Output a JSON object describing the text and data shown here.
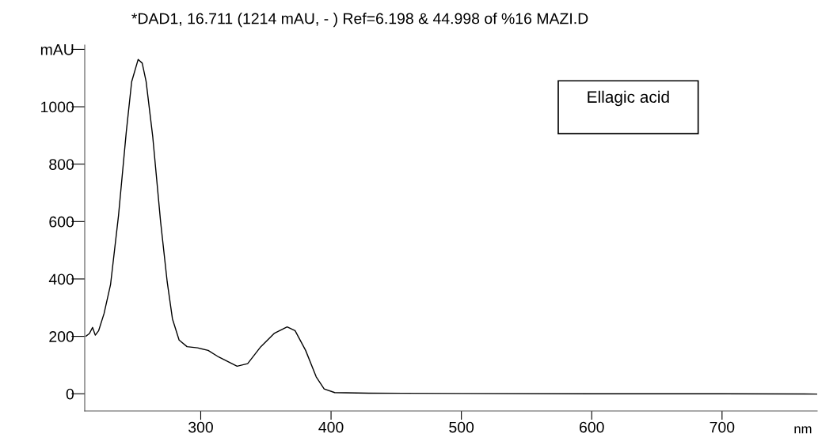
{
  "chart_data": {
    "type": "line",
    "title": "*DAD1, 16.711 (1214 mAU, - ) Ref=6.198 & 44.998 of %16 MAZI.D",
    "xlabel": "nm",
    "annotations": [
      "Ellagic acid"
    ],
    "x": [
      212,
      214.6,
      217,
      219.1,
      221.7,
      225.8,
      230.8,
      236.9,
      242.9,
      247,
      252,
      255.1,
      258.1,
      263.2,
      269.2,
      274.3,
      278.3,
      283.4,
      289.5,
      297.6,
      305.7,
      313.8,
      327.9,
      336,
      346.1,
      356.3,
      366.3,
      372.4,
      380.5,
      388.6,
      394.7,
      402.8,
      429.1,
      500,
      600,
      700,
      773
    ],
    "series": [
      {
        "color": "#000000",
        "values": [
          201,
          210,
          231,
          204,
          220,
          279,
          380,
          620,
          913,
          1087,
          1165,
          1152,
          1088,
          895,
          600,
          389,
          261,
          187,
          164,
          160,
          151,
          128,
          96,
          105,
          164,
          210,
          233,
          220,
          151,
          59,
          17,
          4,
          2,
          1,
          0,
          0,
          -1
        ]
      }
    ],
    "xlim": [
      211,
      773
    ],
    "ylim": [
      -60,
      1215
    ],
    "xticks": [
      300,
      400,
      500,
      600,
      700
    ],
    "yticks": [
      0,
      200,
      400,
      600,
      800,
      1000,
      {
        "value": 1200,
        "label": "mAU"
      }
    ],
    "grid": false,
    "legend": false,
    "marker": "none",
    "line_style": "solid"
  }
}
